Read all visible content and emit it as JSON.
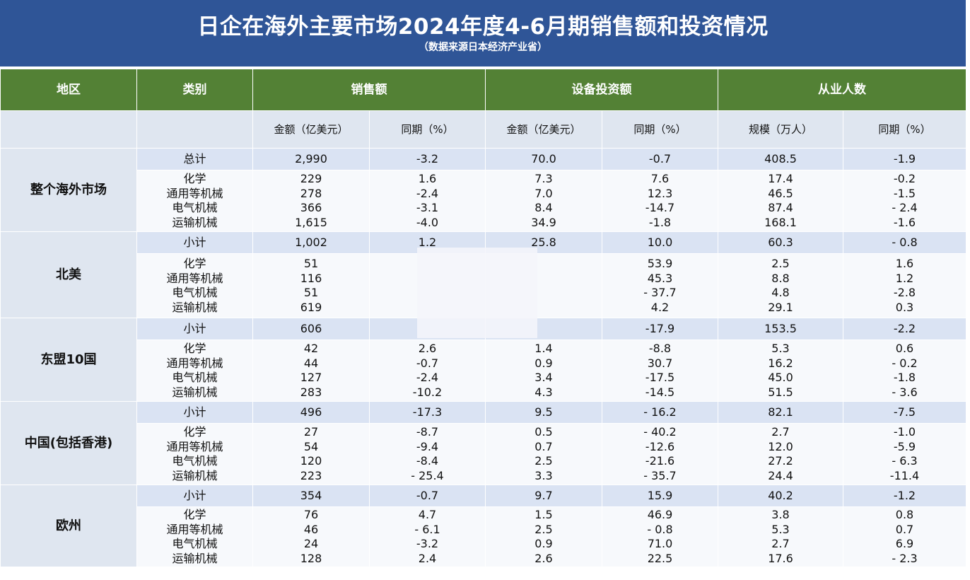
{
  "title": "日企在海外主要市场2024年度4-6月期销售额和投资情况",
  "subtitle": "（数据来源日本经济产业省）",
  "header": {
    "region": "地区",
    "category": "类别",
    "sales": "销售额",
    "investment": "设备投资额",
    "employees": "从业人数"
  },
  "subheader": {
    "sales_amount": "金额（亿美元）",
    "sales_yoy": "同期（%）",
    "inv_amount": "金额（亿美元）",
    "inv_yoy": "同期（%）",
    "emp_scale": "规模（万人）",
    "emp_yoy": "同期（%）"
  },
  "regions": [
    {
      "name": "整个海外市场",
      "summary": {
        "label": "总计",
        "sales": "2,990",
        "sales_yoy": "-3.2",
        "inv": "70.0",
        "inv_yoy": "-0.7",
        "emp": "408.5",
        "emp_yoy": "-1.9"
      },
      "details": [
        {
          "label": "化学",
          "sales": "229",
          "sales_yoy": "1.6",
          "inv": "7.3",
          "inv_yoy": "7.6",
          "emp": "17.4",
          "emp_yoy": "-0.2"
        },
        {
          "label": "通用等机械",
          "sales": "278",
          "sales_yoy": "-2.4",
          "inv": "7.0",
          "inv_yoy": "12.3",
          "emp": "46.5",
          "emp_yoy": "-1.5"
        },
        {
          "label": "电气机械",
          "sales": "366",
          "sales_yoy": "-3.1",
          "inv": "8.4",
          "inv_yoy": "-14.7",
          "emp": "87.4",
          "emp_yoy": "- 2.4"
        },
        {
          "label": "运输机械",
          "sales": "1,615",
          "sales_yoy": "-4.0",
          "inv": "34.9",
          "inv_yoy": "-1.8",
          "emp": "168.1",
          "emp_yoy": "-1.6"
        }
      ]
    },
    {
      "name": "北美",
      "summary": {
        "label": "小计",
        "sales": "1,002",
        "sales_yoy": "1.2",
        "inv": "25.8",
        "inv_yoy": "10.0",
        "emp": "60.3",
        "emp_yoy": "- 0.8"
      },
      "details": [
        {
          "label": "化学",
          "sales": "51",
          "sales_yoy": "",
          "inv": "",
          "inv_yoy": "53.9",
          "emp": "2.5",
          "emp_yoy": "1.6"
        },
        {
          "label": "通用等机械",
          "sales": "116",
          "sales_yoy": "",
          "inv": "",
          "inv_yoy": "45.3",
          "emp": "8.8",
          "emp_yoy": "1.2"
        },
        {
          "label": "电气机械",
          "sales": "51",
          "sales_yoy": "",
          "inv": "",
          "inv_yoy": "- 37.7",
          "emp": "4.8",
          "emp_yoy": "-2.8"
        },
        {
          "label": "运输机械",
          "sales": "619",
          "sales_yoy": "",
          "inv": "",
          "inv_yoy": "4.2",
          "emp": "29.1",
          "emp_yoy": "0.3"
        }
      ]
    },
    {
      "name": "东盟10国",
      "summary": {
        "label": "小计",
        "sales": "606",
        "sales_yoy": "",
        "inv": "",
        "inv_yoy": "-17.9",
        "emp": "153.5",
        "emp_yoy": "-2.2"
      },
      "details": [
        {
          "label": "化学",
          "sales": "42",
          "sales_yoy": "2.6",
          "inv": "1.4",
          "inv_yoy": "-8.8",
          "emp": "5.3",
          "emp_yoy": "0.6"
        },
        {
          "label": "通用等机械",
          "sales": "44",
          "sales_yoy": "-0.7",
          "inv": "0.9",
          "inv_yoy": "30.7",
          "emp": "16.2",
          "emp_yoy": "- 0.2"
        },
        {
          "label": "电气机械",
          "sales": "127",
          "sales_yoy": "-2.4",
          "inv": "3.4",
          "inv_yoy": "-17.5",
          "emp": "45.0",
          "emp_yoy": "-1.8"
        },
        {
          "label": "运输机械",
          "sales": "283",
          "sales_yoy": "-10.2",
          "inv": "4.3",
          "inv_yoy": "-14.5",
          "emp": "51.5",
          "emp_yoy": "- 3.6"
        }
      ]
    },
    {
      "name": "中国(包括香港)",
      "summary": {
        "label": "小计",
        "sales": "496",
        "sales_yoy": "-17.3",
        "inv": "9.5",
        "inv_yoy": "- 16.2",
        "emp": "82.1",
        "emp_yoy": "-7.5"
      },
      "details": [
        {
          "label": "化学",
          "sales": "27",
          "sales_yoy": "-8.7",
          "inv": "0.5",
          "inv_yoy": "- 40.2",
          "emp": "2.7",
          "emp_yoy": "-1.0"
        },
        {
          "label": "通用等机械",
          "sales": "54",
          "sales_yoy": "-9.4",
          "inv": "0.7",
          "inv_yoy": "-12.6",
          "emp": "12.0",
          "emp_yoy": "-5.9"
        },
        {
          "label": "电气机械",
          "sales": "120",
          "sales_yoy": "-8.4",
          "inv": "2.5",
          "inv_yoy": "-21.6",
          "emp": "27.2",
          "emp_yoy": "- 6.3"
        },
        {
          "label": "运输机械",
          "sales": "223",
          "sales_yoy": "- 25.4",
          "inv": "3.3",
          "inv_yoy": "- 35.7",
          "emp": "24.4",
          "emp_yoy": "-11.4"
        }
      ]
    },
    {
      "name": "欧州",
      "summary": {
        "label": "小计",
        "sales": "354",
        "sales_yoy": "-0.7",
        "inv": "9.7",
        "inv_yoy": "15.9",
        "emp": "40.2",
        "emp_yoy": "-1.2"
      },
      "details": [
        {
          "label": "化学",
          "sales": "76",
          "sales_yoy": "4.7",
          "inv": "1.5",
          "inv_yoy": "46.9",
          "emp": "3.8",
          "emp_yoy": "0.8"
        },
        {
          "label": "通用等机械",
          "sales": "46",
          "sales_yoy": "- 6.1",
          "inv": "2.5",
          "inv_yoy": "- 0.8",
          "emp": "5.3",
          "emp_yoy": "0.7"
        },
        {
          "label": "电气机械",
          "sales": "24",
          "sales_yoy": "-3.2",
          "inv": "0.9",
          "inv_yoy": "71.0",
          "emp": "2.7",
          "emp_yoy": "6.9"
        },
        {
          "label": "运输机械",
          "sales": "128",
          "sales_yoy": "2.4",
          "inv": "2.6",
          "inv_yoy": "22.5",
          "emp": "17.6",
          "emp_yoy": "- 2.3"
        }
      ]
    }
  ],
  "colors": {
    "title_bg": "#2f5597",
    "header_bg": "#538135",
    "row_bg": "#dae3f3"
  }
}
